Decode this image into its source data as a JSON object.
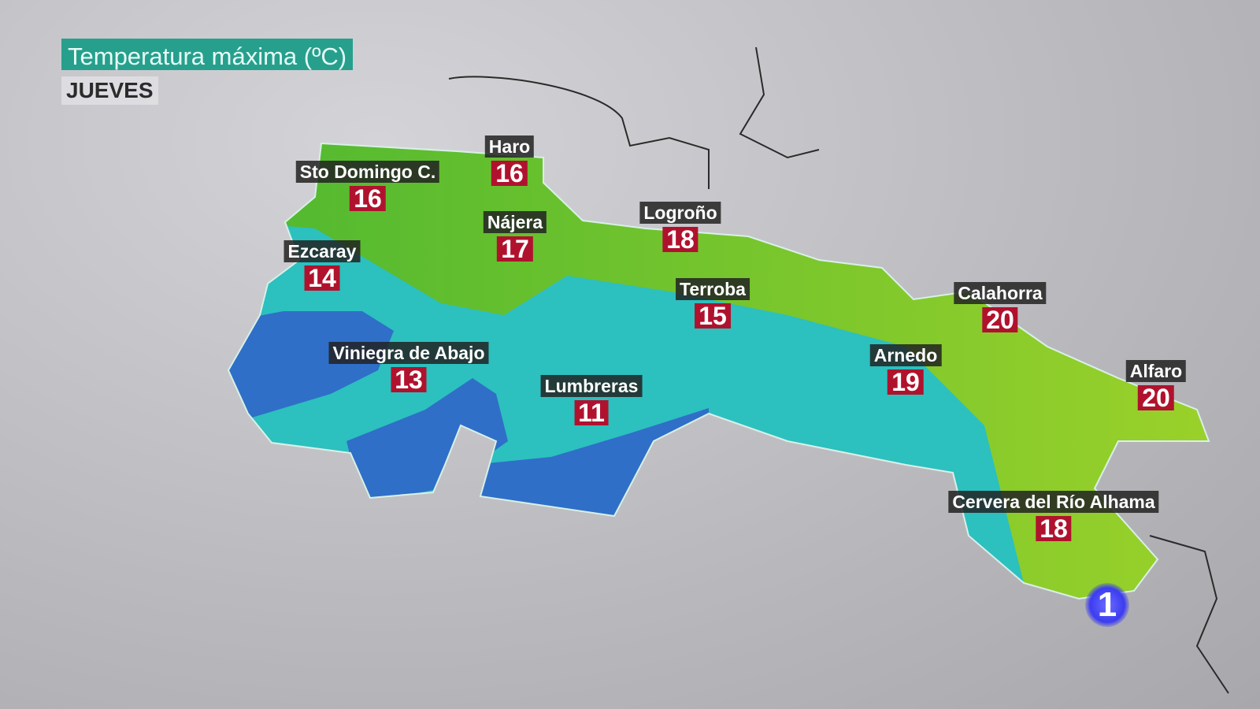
{
  "header": {
    "title": "Temperatura máxima (ºC)",
    "day": "JUEVES"
  },
  "colors": {
    "title_bg": "#26a08d",
    "value_bg": "#b0122e",
    "green_zone": "#6fc12c",
    "cyan_zone": "#2cc0bf",
    "blue_zone": "#2f6fc8"
  },
  "cities": [
    {
      "name": "Haro",
      "value": "16"
    },
    {
      "name": "Sto Domingo C.",
      "value": "16"
    },
    {
      "name": "Nájera",
      "value": "17"
    },
    {
      "name": "Logroño",
      "value": "18"
    },
    {
      "name": "Ezcaray",
      "value": "14"
    },
    {
      "name": "Terroba",
      "value": "15"
    },
    {
      "name": "Calahorra",
      "value": "20"
    },
    {
      "name": "Viniegra de Abajo",
      "value": "13"
    },
    {
      "name": "Arnedo",
      "value": "19"
    },
    {
      "name": "Lumbreras",
      "value": "11"
    },
    {
      "name": "Alfaro",
      "value": "20"
    },
    {
      "name": "Cervera del Río Alhama",
      "value": "18"
    }
  ],
  "logo": {
    "text": "1"
  }
}
